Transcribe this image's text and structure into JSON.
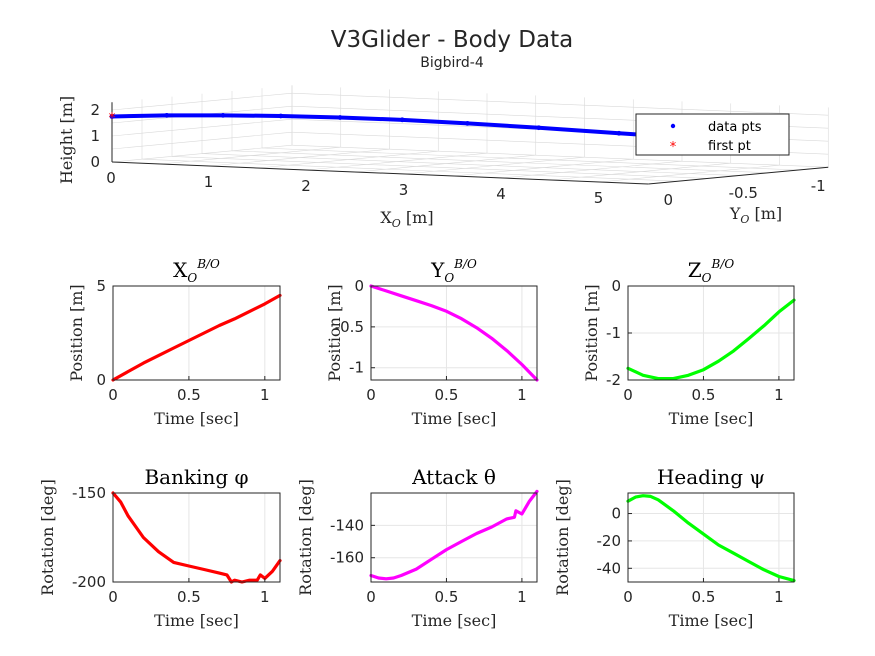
{
  "figure": {
    "title": "V3Glider - Body Data",
    "subtitle": "Bigbird-4"
  },
  "chart_data": [
    {
      "id": "traj3d",
      "type": "scatter",
      "projection": "3d",
      "zlabel": "Height [m]",
      "xlabel": "X_O [m]",
      "ylabel": "Y_O [m]",
      "xlim": [
        0,
        5.5
      ],
      "ylim": [
        -1.2,
        0
      ],
      "zlim": [
        0,
        2.3
      ],
      "xticks": [
        "0",
        "1",
        "2",
        "3",
        "4",
        "5"
      ],
      "yticks": [
        "0",
        "-0.5",
        "-1"
      ],
      "zticks": [
        "0",
        "1",
        "2"
      ],
      "legend": {
        "placement": "right",
        "entries": [
          "data pts",
          "first pt"
        ]
      },
      "grid": true,
      "series": [
        {
          "name": "data pts",
          "color": "#0000ff",
          "x": [
            0,
            0.5,
            1,
            1.5,
            2,
            2.5,
            3,
            3.5,
            4,
            4.5
          ],
          "y": [
            0,
            -0.04,
            -0.09,
            -0.15,
            -0.22,
            -0.31,
            -0.42,
            -0.57,
            -0.78,
            -1.12
          ],
          "z": [
            1.75,
            1.85,
            1.9,
            1.92,
            1.9,
            1.84,
            1.72,
            1.55,
            1.3,
            0.95
          ]
        },
        {
          "name": "first pt",
          "color": "#ff0000",
          "x": [
            0
          ],
          "y": [
            0
          ],
          "z": [
            1.75
          ]
        }
      ]
    },
    {
      "id": "xpos",
      "type": "line",
      "title": "X_O^{B/O}",
      "xlabel": "Time [sec]",
      "ylabel": "Position [m]",
      "xlim": [
        0,
        1.1
      ],
      "ylim": [
        0,
        5
      ],
      "xticks": [
        0,
        0.5,
        1
      ],
      "xticklabels": [
        "0",
        "0.5",
        "1"
      ],
      "yticks": [
        0,
        5
      ],
      "yticklabels": [
        "0",
        "5"
      ],
      "grid": true,
      "color": "#ff0000",
      "x": [
        0,
        0.1,
        0.2,
        0.3,
        0.4,
        0.5,
        0.6,
        0.7,
        0.8,
        0.9,
        1.0,
        1.1
      ],
      "y": [
        0,
        0.45,
        0.9,
        1.3,
        1.7,
        2.1,
        2.5,
        2.9,
        3.25,
        3.65,
        4.05,
        4.5
      ]
    },
    {
      "id": "ypos",
      "type": "line",
      "title": "Y_O^{B/O}",
      "xlabel": "Time [sec]",
      "ylabel": "Position [m]",
      "xlim": [
        0,
        1.1
      ],
      "ylim": [
        -1.15,
        0
      ],
      "xticks": [
        0,
        0.5,
        1
      ],
      "xticklabels": [
        "0",
        "0.5",
        "1"
      ],
      "yticks": [
        0,
        -0.5,
        -1
      ],
      "yticklabels": [
        "0",
        "-0.5",
        "-1"
      ],
      "grid": true,
      "color": "#ff00ff",
      "x": [
        0,
        0.1,
        0.2,
        0.3,
        0.4,
        0.5,
        0.6,
        0.7,
        0.8,
        0.9,
        1.0,
        1.1
      ],
      "y": [
        0,
        -0.06,
        -0.12,
        -0.18,
        -0.24,
        -0.31,
        -0.4,
        -0.51,
        -0.64,
        -0.79,
        -0.96,
        -1.15
      ]
    },
    {
      "id": "zpos",
      "type": "line",
      "title": "Z_O^{B/O}",
      "xlabel": "Time [sec]",
      "ylabel": "Position [m]",
      "xlim": [
        0,
        1.1
      ],
      "ylim": [
        -2,
        0
      ],
      "xticks": [
        0,
        0.5,
        1
      ],
      "xticklabels": [
        "0",
        "0.5",
        "1"
      ],
      "yticks": [
        0,
        -1,
        -2
      ],
      "yticklabels": [
        "0",
        "-1",
        "-2"
      ],
      "grid": true,
      "color": "#00ff00",
      "x": [
        0,
        0.1,
        0.2,
        0.3,
        0.4,
        0.5,
        0.6,
        0.7,
        0.8,
        0.9,
        1.0,
        1.1
      ],
      "y": [
        -1.75,
        -1.9,
        -1.97,
        -1.97,
        -1.9,
        -1.78,
        -1.6,
        -1.38,
        -1.12,
        -0.85,
        -0.55,
        -0.3
      ]
    },
    {
      "id": "bank",
      "type": "line",
      "title": "Banking φ",
      "xlabel": "Time [sec]",
      "ylabel": "Rotation [deg]",
      "xlim": [
        0,
        1.1
      ],
      "ylim": [
        -200,
        -150
      ],
      "xticks": [
        0,
        0.5,
        1
      ],
      "xticklabels": [
        "0",
        "0.5",
        "1"
      ],
      "yticks": [
        -150,
        -200
      ],
      "yticklabels": [
        "-150",
        "-200"
      ],
      "grid": true,
      "color": "#ff0000",
      "x": [
        0,
        0.05,
        0.1,
        0.2,
        0.3,
        0.4,
        0.5,
        0.6,
        0.7,
        0.75,
        0.78,
        0.8,
        0.85,
        0.9,
        0.95,
        0.97,
        1.0,
        1.05,
        1.1
      ],
      "y": [
        -150,
        -155,
        -163,
        -175,
        -183,
        -189,
        -191,
        -193,
        -195,
        -196,
        -200,
        -199,
        -200,
        -199,
        -199,
        -196,
        -198,
        -194,
        -188
      ]
    },
    {
      "id": "attack",
      "type": "line",
      "title": "Attack θ",
      "xlabel": "Time [sec]",
      "ylabel": "Rotation [deg]",
      "xlim": [
        0,
        1.1
      ],
      "ylim": [
        -175,
        -120
      ],
      "xticks": [
        0,
        0.5,
        1
      ],
      "xticklabels": [
        "0",
        "0.5",
        "1"
      ],
      "yticks": [
        -140,
        -160
      ],
      "yticklabels": [
        "-140",
        "-160"
      ],
      "grid": true,
      "color": "#ff00ff",
      "x": [
        0,
        0.05,
        0.1,
        0.15,
        0.2,
        0.3,
        0.4,
        0.5,
        0.6,
        0.7,
        0.8,
        0.9,
        0.95,
        0.96,
        1.0,
        1.05,
        1.1
      ],
      "y": [
        -171,
        -172.5,
        -173,
        -172.5,
        -171,
        -167,
        -161,
        -155,
        -150,
        -145,
        -141,
        -136,
        -135,
        -131,
        -133,
        -125,
        -119
      ]
    },
    {
      "id": "heading",
      "type": "line",
      "title": "Heading ψ",
      "xlabel": "Time [sec]",
      "ylabel": "Rotation [deg]",
      "xlim": [
        0,
        1.1
      ],
      "ylim": [
        -50,
        15
      ],
      "xticks": [
        0,
        0.5,
        1
      ],
      "xticklabels": [
        "0",
        "0.5",
        "1"
      ],
      "yticks": [
        0,
        -20,
        -40
      ],
      "yticklabels": [
        "0",
        "-20",
        "-40"
      ],
      "grid": true,
      "color": "#00ff00",
      "x": [
        0,
        0.05,
        0.1,
        0.15,
        0.2,
        0.3,
        0.4,
        0.5,
        0.6,
        0.7,
        0.8,
        0.9,
        1.0,
        1.1
      ],
      "y": [
        9,
        12,
        13,
        12.5,
        10,
        2,
        -7,
        -15,
        -23,
        -29,
        -35,
        -41,
        -46,
        -49
      ]
    }
  ]
}
